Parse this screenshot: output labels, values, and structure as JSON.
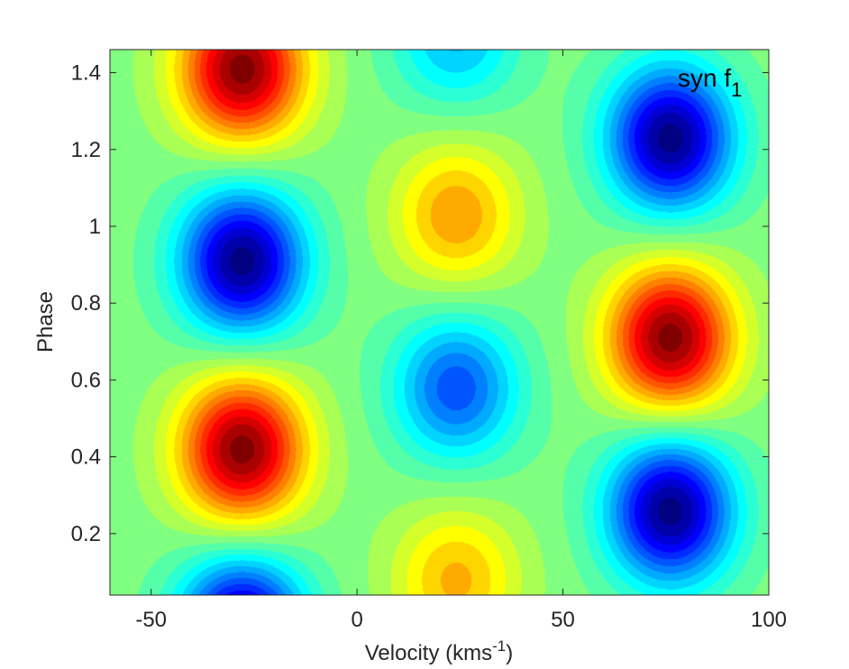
{
  "chart_data": {
    "type": "heatmap",
    "title": "",
    "xlabel_main": "Velocity (kms",
    "xlabel_sup": "-1",
    "xlabel_close": ")",
    "ylabel": "Phase",
    "xlim": [
      -60,
      100
    ],
    "ylim": [
      0.04,
      1.46
    ],
    "x_ticks": [
      {
        "value": -50,
        "label": "-50"
      },
      {
        "value": 0,
        "label": "0"
      },
      {
        "value": 50,
        "label": "50"
      },
      {
        "value": 100,
        "label": "100"
      }
    ],
    "y_ticks": [
      {
        "value": 0.2,
        "label": "0.2"
      },
      {
        "value": 0.4,
        "label": "0.4"
      },
      {
        "value": 0.6,
        "label": "0.6"
      },
      {
        "value": 0.8,
        "label": "0.8"
      },
      {
        "value": 1.0,
        "label": "1"
      },
      {
        "value": 1.2,
        "label": "1.2"
      },
      {
        "value": 1.4,
        "label": "1.4"
      }
    ],
    "annotation_main": "syn f",
    "annotation_sub": "1",
    "colormap": "jet",
    "grid": false,
    "features": [
      {
        "x": -28,
        "y": 1.41,
        "amplitude": 1.0
      },
      {
        "x": -28,
        "y": 0.91,
        "amplitude": -1.0
      },
      {
        "x": -28,
        "y": 0.42,
        "amplitude": 1.0
      },
      {
        "x": -28,
        "y": -0.05,
        "amplitude": -1.0
      },
      {
        "x": 76,
        "y": 1.23,
        "amplitude": -1.0
      },
      {
        "x": 76,
        "y": 0.71,
        "amplitude": 1.0
      },
      {
        "x": 76,
        "y": 0.26,
        "amplitude": -1.0
      },
      {
        "x": 24,
        "y": 1.03,
        "amplitude": 0.45
      },
      {
        "x": 24,
        "y": 0.58,
        "amplitude": -0.6
      },
      {
        "x": 24,
        "y": 0.08,
        "amplitude": 0.4
      },
      {
        "x": 24,
        "y": 1.5,
        "amplitude": -0.4
      }
    ]
  }
}
